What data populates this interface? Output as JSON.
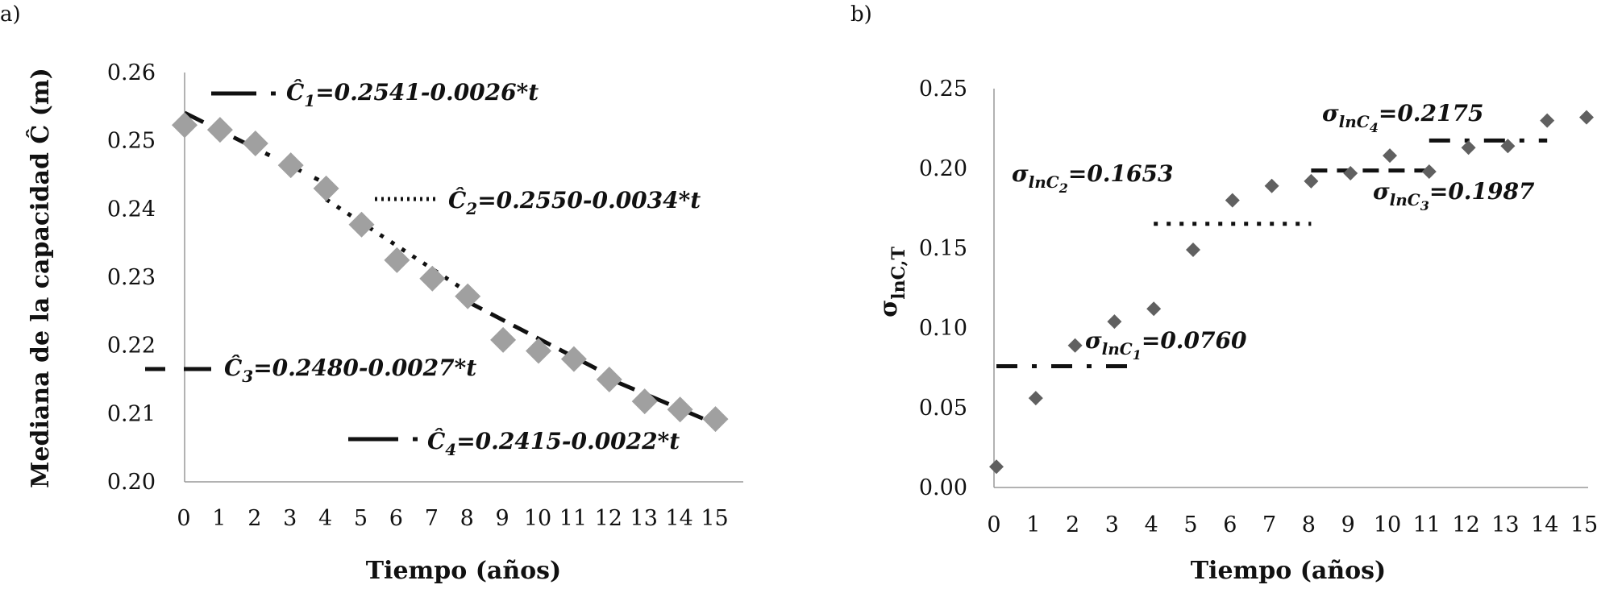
{
  "chart_data": [
    {
      "type": "scatter",
      "panel_label": "a)",
      "xlabel": "Tiempo (años)",
      "ylabel": "Mediana de la capacidad Ĉ (m)",
      "xlim": [
        0,
        15
      ],
      "ylim": [
        0.2,
        0.26
      ],
      "x_ticks": [
        "0",
        "1",
        "2",
        "3",
        "4",
        "5",
        "6",
        "7",
        "8",
        "9",
        "10",
        "11",
        "12",
        "13",
        "14",
        "15"
      ],
      "y_ticks": [
        "0.20",
        "0.21",
        "0.22",
        "0.23",
        "0.24",
        "0.25",
        "0.26"
      ],
      "grid": false,
      "marker_color": "#a0a0a0",
      "series": [
        {
          "marker": "diamond",
          "x": [
            0,
            1,
            2,
            3,
            4,
            5,
            6,
            7,
            8,
            9,
            10,
            11,
            12,
            13,
            14,
            15
          ],
          "y": [
            0.2523,
            0.2516,
            0.2496,
            0.2464,
            0.243,
            0.2377,
            0.2325,
            0.2298,
            0.2272,
            0.2208,
            0.2192,
            0.218,
            0.215,
            0.2118,
            0.2106,
            0.2092
          ]
        }
      ],
      "fit_lines": [
        {
          "style": "dash-dot",
          "x": [
            0,
            4
          ],
          "y": [
            0.2541,
            0.2437
          ]
        },
        {
          "style": "dotted",
          "x": [
            4,
            8
          ],
          "y": [
            0.2414,
            0.2278
          ]
        },
        {
          "style": "dashed",
          "x": [
            8,
            12
          ],
          "y": [
            0.2264,
            0.2156
          ]
        },
        {
          "style": "long-dash",
          "x": [
            12,
            15
          ],
          "y": [
            0.2151,
            0.2085
          ]
        }
      ],
      "annotations": [
        {
          "base": "Ĉ",
          "sub": "1",
          "rest": "=0.2541-0.0026*t"
        },
        {
          "base": "Ĉ",
          "sub": "2",
          "rest": "=0.2550-0.0034*t"
        },
        {
          "base": "Ĉ",
          "sub": "3",
          "rest": "=0.2480-0.0027*t"
        },
        {
          "base": "Ĉ",
          "sub": "4",
          "rest": "=0.2415-0.0022*t"
        }
      ]
    },
    {
      "type": "scatter",
      "panel_label": "b)",
      "xlabel": "Tiempo (años)",
      "ylabel_main": "σ",
      "ylabel_sub": "lnC,T",
      "xlim": [
        0,
        15
      ],
      "ylim": [
        0.0,
        0.25
      ],
      "x_ticks": [
        "0",
        "1",
        "2",
        "3",
        "4",
        "5",
        "6",
        "7",
        "8",
        "9",
        "10",
        "11",
        "12",
        "13",
        "14",
        "15"
      ],
      "y_ticks": [
        "0.00",
        "0.05",
        "0.10",
        "0.15",
        "0.20",
        "0.25"
      ],
      "grid": false,
      "marker_color": "#606060",
      "series": [
        {
          "marker": "diamond",
          "x": [
            0,
            1,
            2,
            3,
            4,
            5,
            6,
            7,
            8,
            9,
            10,
            11,
            12,
            13,
            14,
            15
          ],
          "y": [
            0.013,
            0.056,
            0.089,
            0.104,
            0.112,
            0.149,
            0.18,
            0.189,
            0.192,
            0.197,
            0.208,
            0.198,
            0.213,
            0.214,
            0.23,
            0.232
          ]
        }
      ],
      "mean_lines": [
        {
          "style": "dash-dot",
          "x": [
            0,
            3.5
          ],
          "y": 0.076
        },
        {
          "style": "dotted",
          "x": [
            4,
            8
          ],
          "y": 0.1653
        },
        {
          "style": "dashed",
          "x": [
            8,
            11
          ],
          "y": 0.1987
        },
        {
          "style": "dash-dot",
          "x": [
            11,
            14
          ],
          "y": 0.2175
        }
      ],
      "annotations": [
        {
          "base": "σ",
          "sub": "lnC",
          "subsub": "1",
          "rest": "=0.0760"
        },
        {
          "base": "σ",
          "sub": "lnC",
          "subsub": "2",
          "rest": "=0.1653"
        },
        {
          "base": "σ",
          "sub": "lnC",
          "subsub": "3",
          "rest": "=0.1987"
        },
        {
          "base": "σ",
          "sub": "lnC",
          "subsub": "4",
          "rest": "=0.2175"
        }
      ]
    }
  ]
}
